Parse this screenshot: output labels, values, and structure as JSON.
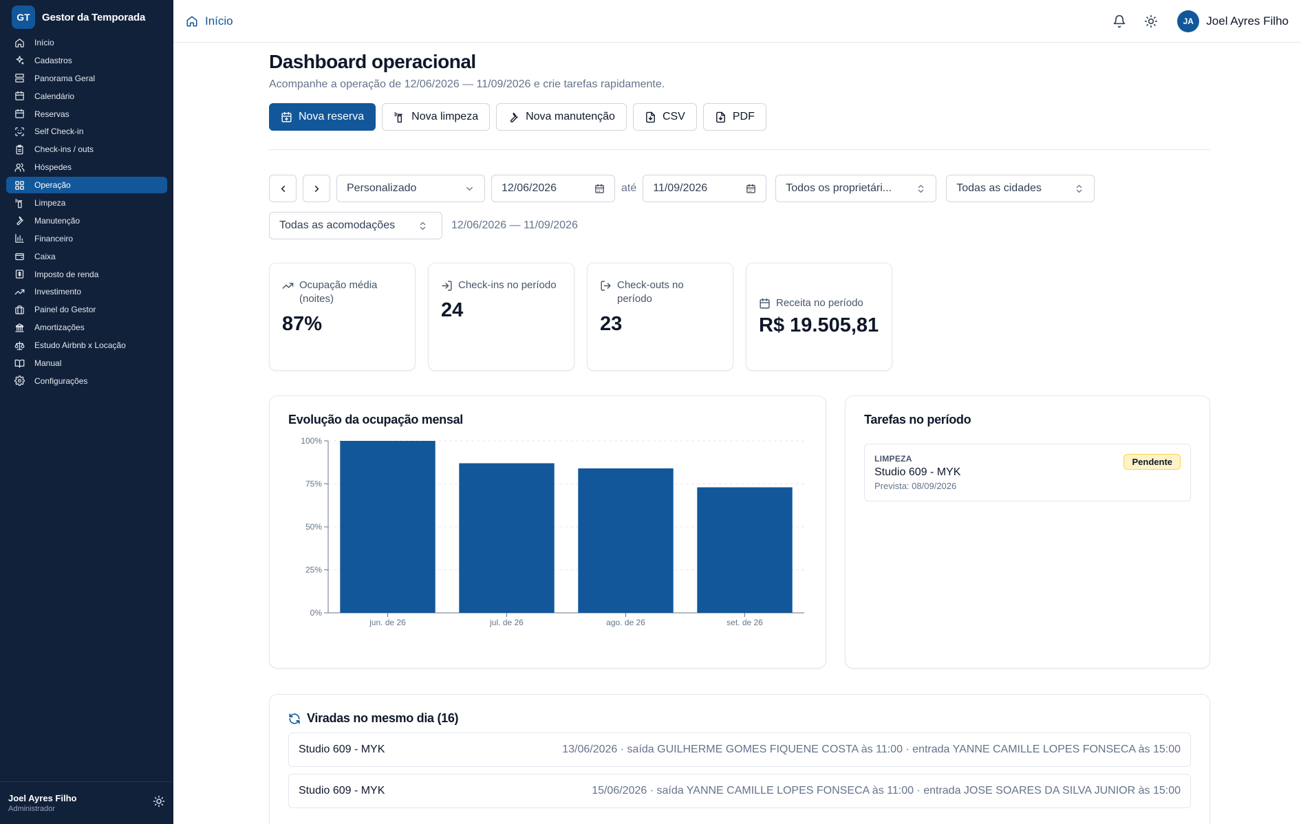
{
  "brand": {
    "logo": "GT",
    "name": "Gestor da Temporada"
  },
  "sidebar": {
    "items": [
      {
        "label": "Início",
        "icon": "home-icon"
      },
      {
        "label": "Cadastros",
        "icon": "sparkles-icon"
      },
      {
        "label": "Panorama Geral",
        "icon": "layout-icon"
      },
      {
        "label": "Calendário",
        "icon": "calendar-icon"
      },
      {
        "label": "Reservas",
        "icon": "calendar-icon"
      },
      {
        "label": "Self Check-in",
        "icon": "scan-icon"
      },
      {
        "label": "Check-ins / outs",
        "icon": "clipboard-icon"
      },
      {
        "label": "Hóspedes",
        "icon": "users-icon"
      },
      {
        "label": "Operação",
        "icon": "grid-icon",
        "active": true
      },
      {
        "label": "Limpeza",
        "icon": "spray-icon"
      },
      {
        "label": "Manutenção",
        "icon": "wrench-icon"
      },
      {
        "label": "Financeiro",
        "icon": "bar-chart-icon"
      },
      {
        "label": "Caixa",
        "icon": "wallet-icon"
      },
      {
        "label": "Imposto de renda",
        "icon": "receipt-icon"
      },
      {
        "label": "Investimento",
        "icon": "trending-up-icon"
      },
      {
        "label": "Painel do Gestor",
        "icon": "briefcase-icon"
      },
      {
        "label": "Amortizações",
        "icon": "bank-icon"
      },
      {
        "label": "Estudo Airbnb x Locação",
        "icon": "scale-icon"
      },
      {
        "label": "Manual",
        "icon": "book-icon"
      },
      {
        "label": "Configurações",
        "icon": "gear-icon"
      }
    ],
    "footer": {
      "name": "Joel Ayres Filho",
      "role": "Administrador"
    }
  },
  "topbar": {
    "breadcrumb": "Início",
    "avatar": "JA",
    "user": "Joel Ayres Filho"
  },
  "page": {
    "title": "Dashboard operacional",
    "subtitle": "Acompanhe a operação de 12/06/2026 — 11/09/2026 e crie tarefas rapidamente."
  },
  "actions": {
    "new_reservation": "Nova reserva",
    "new_cleaning": "Nova limpeza",
    "new_maintenance": "Nova manutenção",
    "csv": "CSV",
    "pdf": "PDF"
  },
  "filters": {
    "period": "Personalizado",
    "date_from": "12/06/2026",
    "until": "até",
    "date_to": "11/09/2026",
    "owners": "Todos os proprietári...",
    "cities": "Todas as cidades",
    "units": "Todas as acomodações",
    "range_text": "12/06/2026 — 11/09/2026"
  },
  "kpis": [
    {
      "label": "Ocupação média (noites)",
      "value": "87%"
    },
    {
      "label": "Check-ins no período",
      "value": "24"
    },
    {
      "label": "Check-outs no período",
      "value": "23"
    },
    {
      "label": "Receita no período",
      "value": "R$ 19.505,81"
    }
  ],
  "chart": {
    "title": "Evolução da ocupação mensal"
  },
  "chart_data": {
    "type": "bar",
    "categories": [
      "jun. de 26",
      "jul. de 26",
      "ago. de 26",
      "set. de 26"
    ],
    "values": [
      100,
      87,
      84,
      73
    ],
    "yticks": [
      "0%",
      "25%",
      "50%",
      "75%",
      "100%"
    ],
    "ylim": [
      0,
      100
    ],
    "grid": true,
    "color": "#12579a"
  },
  "tasks": {
    "title": "Tarefas no período",
    "items": [
      {
        "type": "LIMPEZA",
        "name": "Studio 609 - MYK",
        "due": "Prevista: 08/09/2026",
        "status": "Pendente"
      }
    ]
  },
  "turnovers": {
    "title": "Viradas no mesmo dia (16)",
    "items": [
      {
        "name": "Studio 609 - MYK",
        "detail": "13/06/2026 · saída GUILHERME GOMES FIQUENE COSTA às 11:00 · entrada YANNE CAMILLE LOPES FONSECA às 15:00"
      },
      {
        "name": "Studio 609 - MYK",
        "detail": "15/06/2026 · saída YANNE CAMILLE LOPES FONSECA às 11:00 · entrada JOSE SOARES DA SILVA JUNIOR às 15:00"
      }
    ]
  }
}
